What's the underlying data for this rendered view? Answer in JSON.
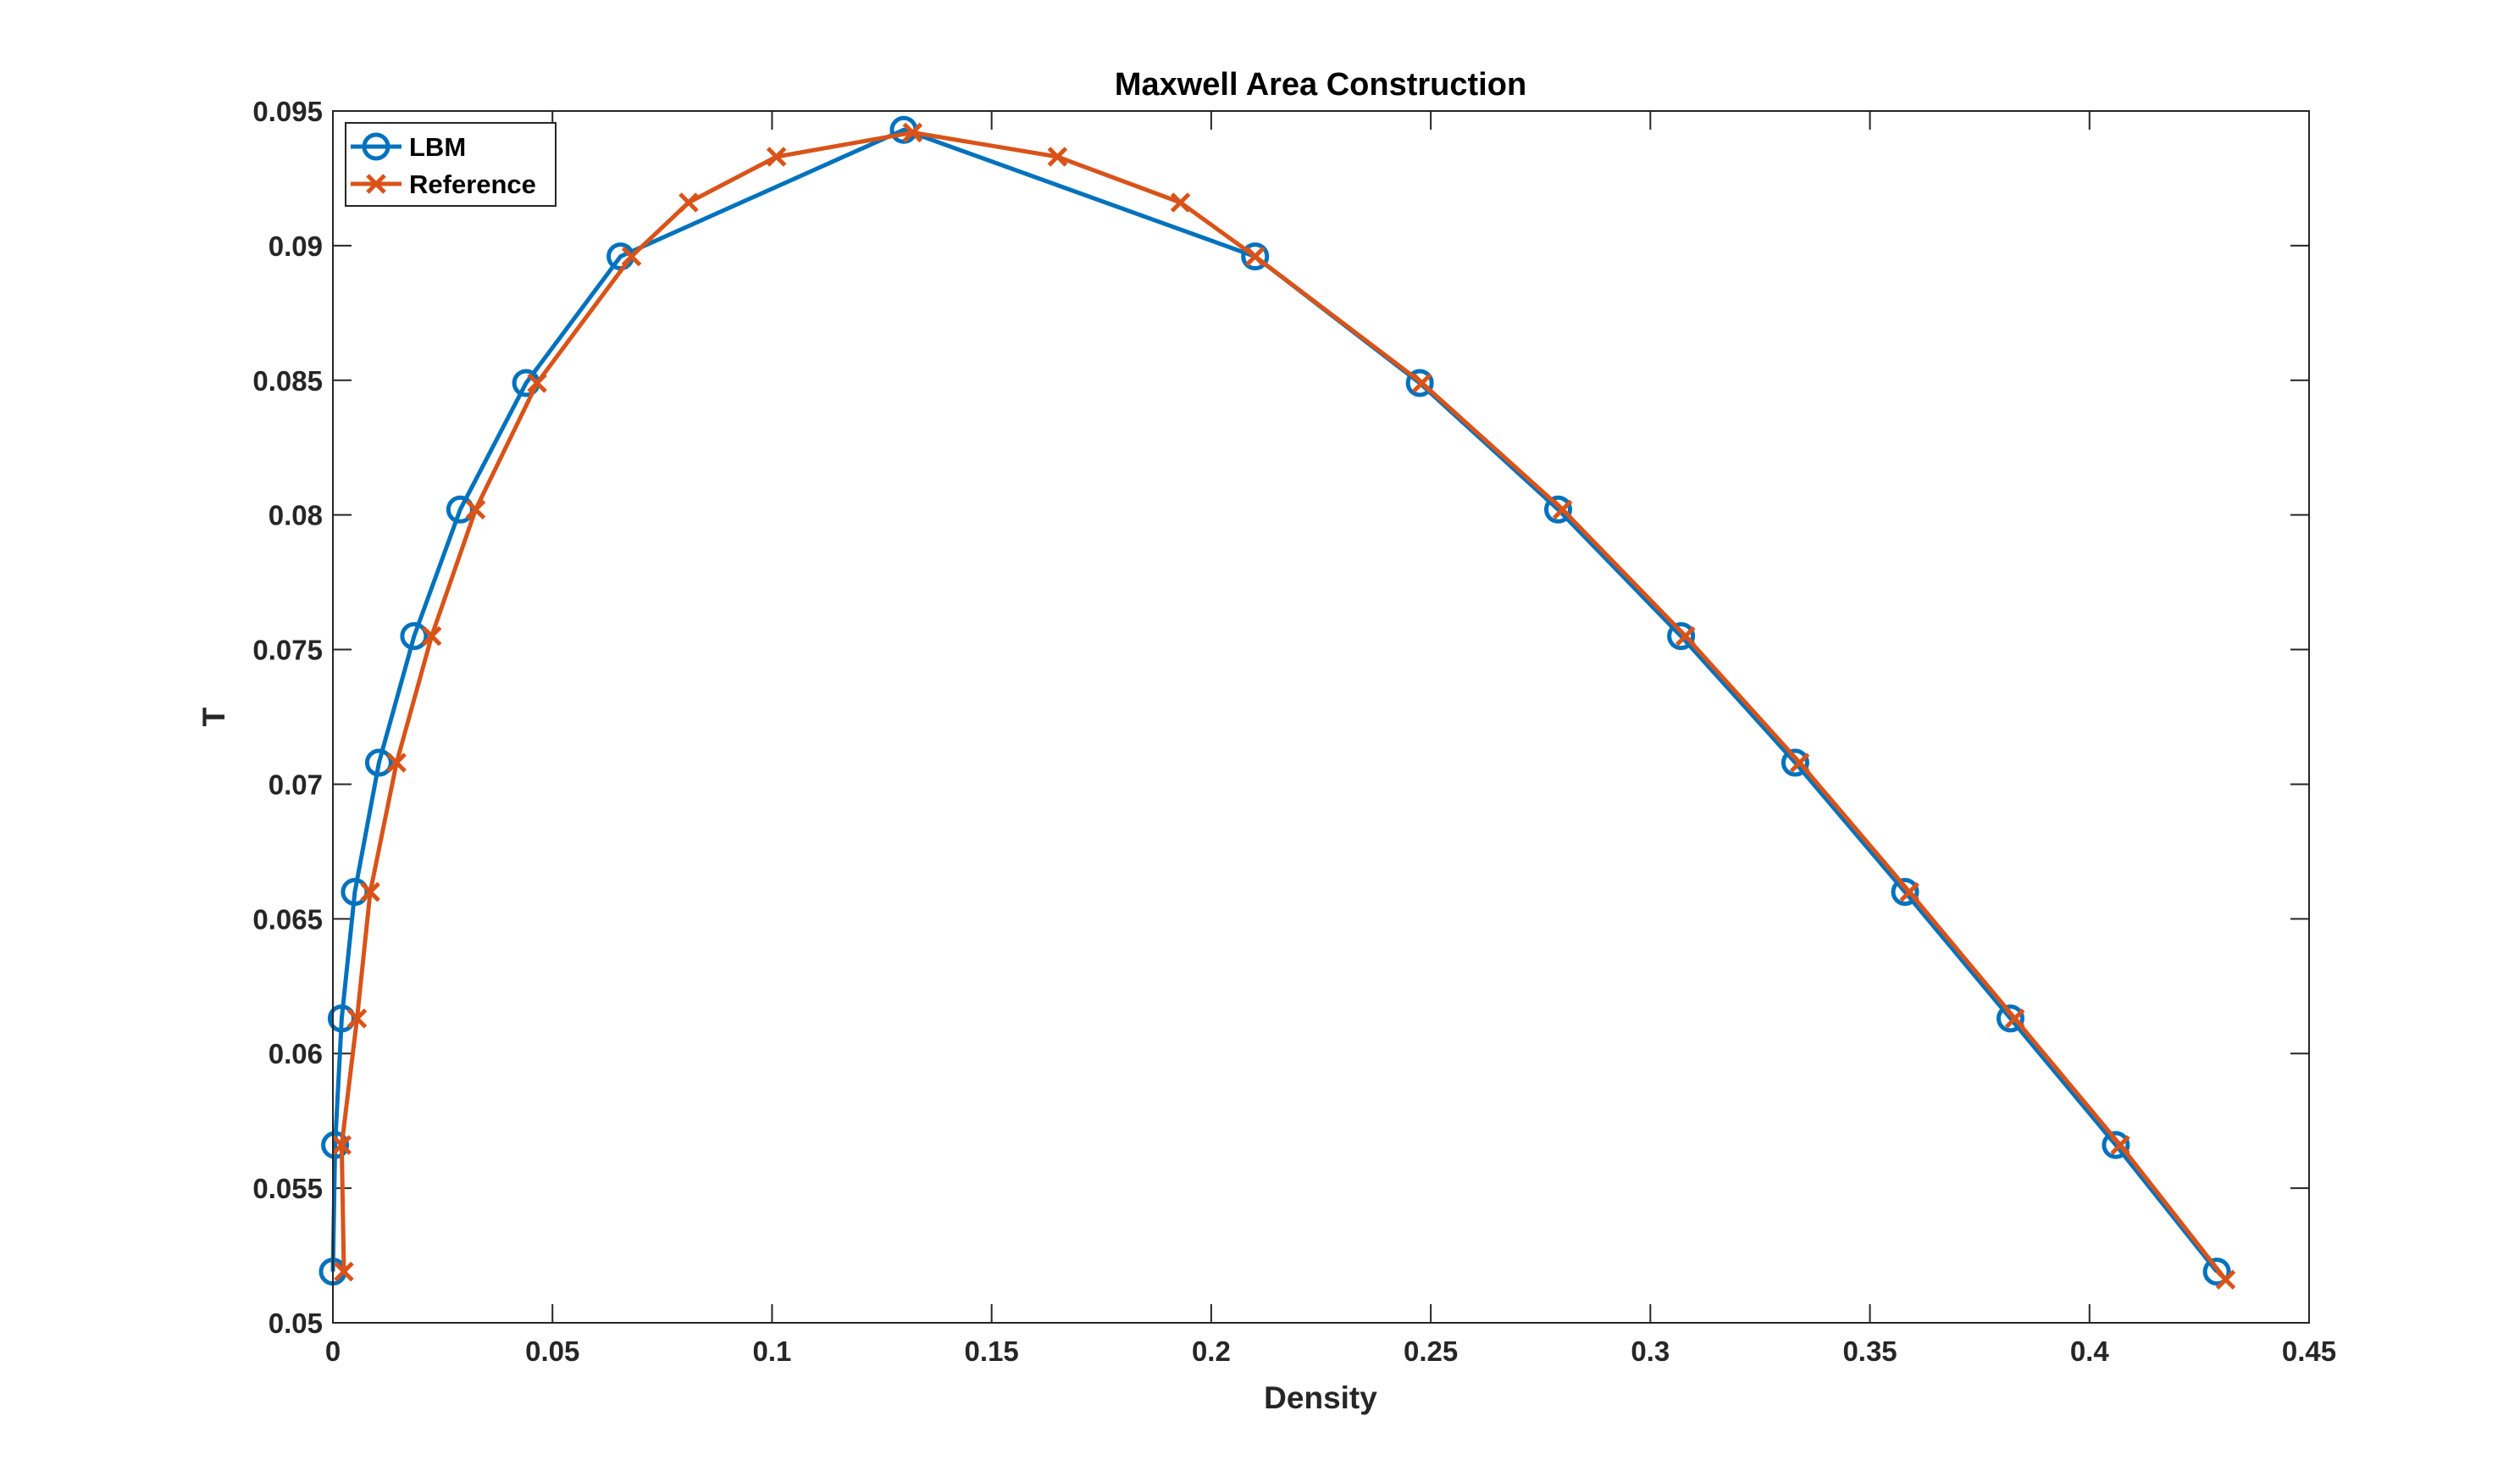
{
  "chart_data": {
    "type": "line",
    "title": "Maxwell Area Construction",
    "xlabel": "Density",
    "ylabel": "T",
    "xlim": [
      0,
      0.45
    ],
    "ylim": [
      0.05,
      0.095
    ],
    "xticks": [
      0,
      0.05,
      0.1,
      0.15,
      0.2,
      0.25,
      0.3,
      0.35,
      0.4,
      0.45
    ],
    "xtick_labels": [
      "0",
      "0.05",
      "0.1",
      "0.15",
      "0.2",
      "0.25",
      "0.3",
      "0.35",
      "0.4",
      "0.45"
    ],
    "yticks": [
      0.05,
      0.055,
      0.06,
      0.065,
      0.07,
      0.075,
      0.08,
      0.085,
      0.09,
      0.095
    ],
    "ytick_labels": [
      "0.05",
      "0.055",
      "0.06",
      "0.065",
      "0.07",
      "0.075",
      "0.08",
      "0.085",
      "0.09",
      "0.095"
    ],
    "grid": false,
    "legend_position": "top-left",
    "series": [
      {
        "name": "LBM",
        "color": "#0072BD",
        "marker": "circle",
        "points": [
          [
            0.0,
            0.0519
          ],
          [
            0.0005,
            0.0566
          ],
          [
            0.002,
            0.0613
          ],
          [
            0.005,
            0.066
          ],
          [
            0.0105,
            0.0708
          ],
          [
            0.0185,
            0.0755
          ],
          [
            0.029,
            0.0802
          ],
          [
            0.044,
            0.0849
          ],
          [
            0.0655,
            0.0896
          ],
          [
            0.13,
            0.0943
          ],
          [
            0.21,
            0.0896
          ],
          [
            0.2475,
            0.0849
          ],
          [
            0.279,
            0.0802
          ],
          [
            0.307,
            0.0755
          ],
          [
            0.333,
            0.0708
          ],
          [
            0.358,
            0.066
          ],
          [
            0.382,
            0.0613
          ],
          [
            0.406,
            0.0566
          ],
          [
            0.429,
            0.0519
          ]
        ]
      },
      {
        "name": "Reference",
        "color": "#D95319",
        "marker": "x",
        "points": [
          [
            0.0025,
            0.0519
          ],
          [
            0.002,
            0.0566
          ],
          [
            0.0055,
            0.0613
          ],
          [
            0.0085,
            0.066
          ],
          [
            0.0145,
            0.0708
          ],
          [
            0.0225,
            0.0755
          ],
          [
            0.0325,
            0.0802
          ],
          [
            0.0465,
            0.0849
          ],
          [
            0.068,
            0.0896
          ],
          [
            0.081,
            0.0916
          ],
          [
            0.101,
            0.0933
          ],
          [
            0.132,
            0.0942
          ],
          [
            0.165,
            0.0933
          ],
          [
            0.193,
            0.0916
          ],
          [
            0.21,
            0.0896
          ],
          [
            0.248,
            0.0849
          ],
          [
            0.28,
            0.0802
          ],
          [
            0.308,
            0.0755
          ],
          [
            0.334,
            0.0708
          ],
          [
            0.359,
            0.066
          ],
          [
            0.383,
            0.0613
          ],
          [
            0.407,
            0.0566
          ],
          [
            0.431,
            0.0516
          ]
        ]
      }
    ]
  }
}
